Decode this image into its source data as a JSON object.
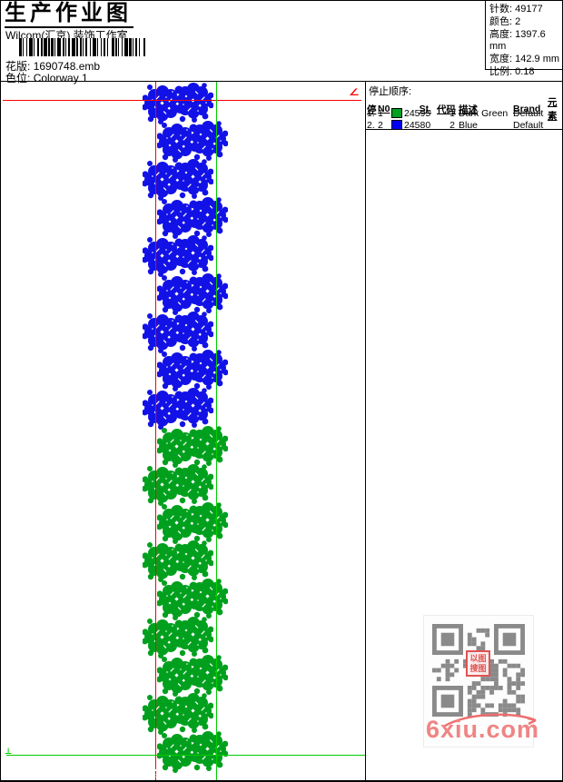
{
  "header": {
    "title": "生产作业图",
    "studio": "Wilcom(汇京) 装饰工作室",
    "design_label": "花版:",
    "design_value": "1690748.emb",
    "colorway_label": "色位:",
    "colorway_value": "Colorway 1"
  },
  "summary": {
    "stitches_label": "针数:",
    "stitches_value": "49177",
    "colors_label": "颜色:",
    "colors_value": "2",
    "height_label": "高度:",
    "height_value": "1397.6 mm",
    "width_label": "宽度:",
    "width_value": "142.9 mm",
    "scale_label": "比例:",
    "scale_value": "0.18"
  },
  "stop_sequence": {
    "title": "停止顺序:",
    "columns": {
      "stop": "停",
      "needle": "N0",
      "stitches": "St.",
      "code": "代码",
      "description": "描述",
      "brand": "Brand",
      "elements": "元素"
    },
    "rows": [
      {
        "stop": "1.",
        "needle": "1",
        "swatch": "#00a020",
        "st": "24595",
        "code": "1",
        "description": "Dark Green",
        "brand": "Default",
        "elements": ""
      },
      {
        "stop": "2.",
        "needle": "2",
        "swatch": "#0000f5",
        "st": "24580",
        "code": "2",
        "description": "Blue",
        "brand": "Default",
        "elements": ""
      }
    ]
  },
  "design": {
    "colors": {
      "blue": "#1212e6",
      "green": "#00a01e"
    },
    "guide_colors": {
      "red": "#ff0000",
      "green": "#00cc00"
    },
    "cluster_sequence": [
      "blue",
      "blue",
      "blue",
      "blue",
      "blue",
      "blue",
      "blue",
      "blue",
      "blue",
      "green",
      "green",
      "green",
      "green",
      "green",
      "green",
      "green",
      "green",
      "green"
    ],
    "start_marker": "∠",
    "origin_marker": "⊥"
  },
  "watermark": {
    "text": "6xiu.com",
    "color": "#f08484",
    "seal_line1": "以图",
    "seal_line2": "搜图"
  }
}
